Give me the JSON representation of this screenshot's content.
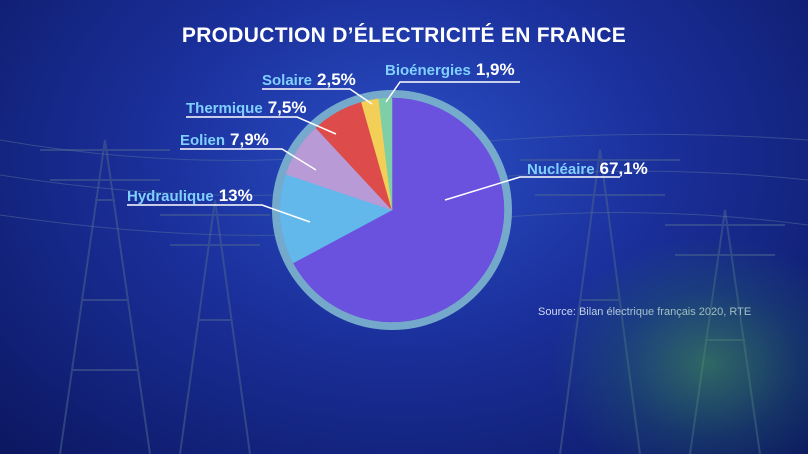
{
  "chart_data": {
    "type": "pie",
    "title": "PRODUCTION D’ÉLECTRICITÉ EN FRANCE",
    "slices": [
      {
        "label": "Nucléaire",
        "value": 67.1,
        "value_label": "67,1%",
        "color": "#6b52de"
      },
      {
        "label": "Hydraulique",
        "value": 13,
        "value_label": "13%",
        "color": "#62b8ea"
      },
      {
        "label": "Eolien",
        "value": 7.9,
        "value_label": "7,9%",
        "color": "#b79ad6"
      },
      {
        "label": "Thermique",
        "value": 7.5,
        "value_label": "7,5%",
        "color": "#dd4b4b"
      },
      {
        "label": "Solaire",
        "value": 2.5,
        "value_label": "2,5%",
        "color": "#f3cf58"
      },
      {
        "label": "Bioénergies",
        "value": 1.9,
        "value_label": "1,9%",
        "color": "#7ecfa8"
      }
    ],
    "legend": "none",
    "label_color": "#7fd0ff",
    "ring_color": "#7eb6cf"
  },
  "source": "Source: Bilan électrique français 2020, RTE"
}
